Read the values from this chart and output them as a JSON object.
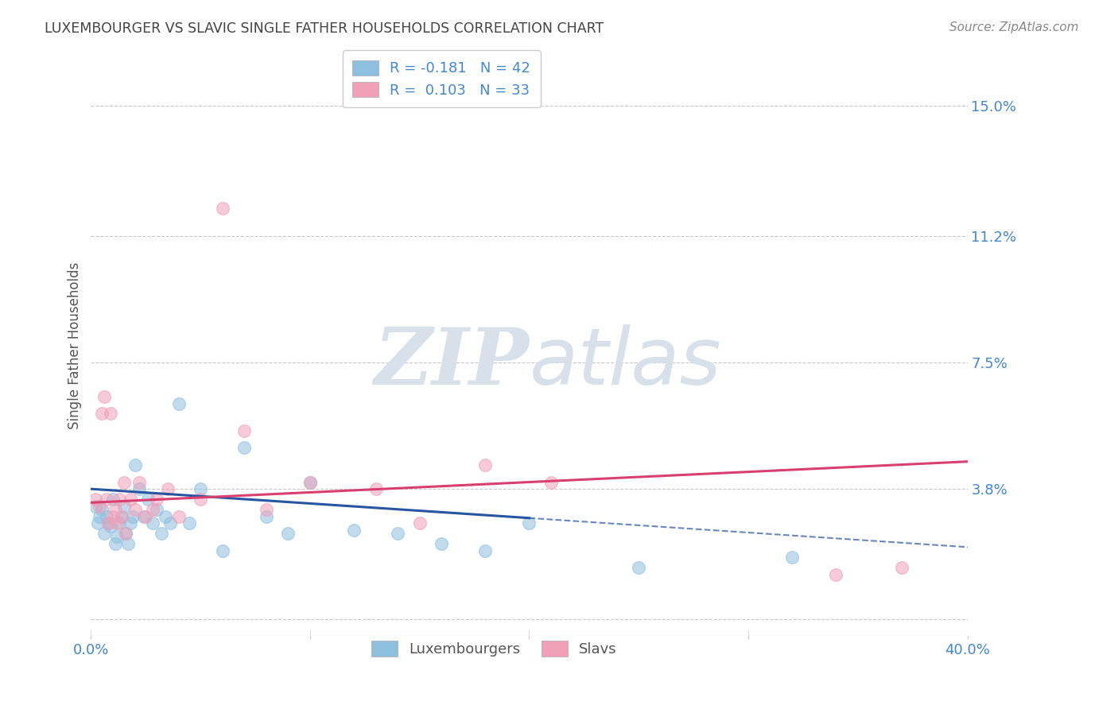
{
  "title": "LUXEMBOURGER VS SLAVIC SINGLE FATHER HOUSEHOLDS CORRELATION CHART",
  "source": "Source: ZipAtlas.com",
  "ylabel": "Single Father Households",
  "xlim": [
    0.0,
    0.4
  ],
  "ylim": [
    -0.005,
    0.165
  ],
  "yticks": [
    0.0,
    0.038,
    0.075,
    0.112,
    0.15
  ],
  "ytick_labels": [
    "",
    "3.8%",
    "7.5%",
    "11.2%",
    "15.0%"
  ],
  "xticks": [
    0.0,
    0.1,
    0.2,
    0.3,
    0.4
  ],
  "xtick_labels": [
    "0.0%",
    "",
    "",
    "",
    "40.0%"
  ],
  "grid_color": "#c8c8c8",
  "background_color": "#ffffff",
  "watermark_zip": "ZIP",
  "watermark_atlas": "atlas",
  "watermark_color": "#d8e0ea",
  "lux_color": "#8fbfdf",
  "slav_color": "#f0a0b8",
  "lux_line_color": "#2855a0",
  "slav_line_color": "#d84070",
  "tick_color": "#4488cc",
  "lux_r": -0.181,
  "lux_n": 42,
  "slav_r": 0.103,
  "slav_n": 33,
  "lux_line_start_y": 0.038,
  "lux_line_end_y": 0.021,
  "lux_line_solid_end_x": 0.2,
  "lux_line_x0": 0.0,
  "lux_line_x1": 0.4,
  "slav_line_start_y": 0.034,
  "slav_line_end_y": 0.046,
  "slav_line_x0": 0.0,
  "slav_line_x1": 0.4,
  "lux_scatter_x": [
    0.002,
    0.003,
    0.004,
    0.005,
    0.006,
    0.007,
    0.008,
    0.009,
    0.01,
    0.011,
    0.012,
    0.013,
    0.014,
    0.015,
    0.016,
    0.017,
    0.018,
    0.019,
    0.02,
    0.022,
    0.024,
    0.026,
    0.028,
    0.03,
    0.032,
    0.034,
    0.036,
    0.04,
    0.045,
    0.05,
    0.06,
    0.07,
    0.08,
    0.09,
    0.1,
    0.12,
    0.14,
    0.16,
    0.18,
    0.2,
    0.25,
    0.32
  ],
  "lux_scatter_y": [
    0.033,
    0.028,
    0.03,
    0.032,
    0.025,
    0.03,
    0.028,
    0.027,
    0.035,
    0.022,
    0.024,
    0.028,
    0.03,
    0.033,
    0.025,
    0.022,
    0.028,
    0.03,
    0.045,
    0.038,
    0.03,
    0.035,
    0.028,
    0.032,
    0.025,
    0.03,
    0.028,
    0.063,
    0.028,
    0.038,
    0.02,
    0.05,
    0.03,
    0.025,
    0.04,
    0.026,
    0.025,
    0.022,
    0.02,
    0.028,
    0.015,
    0.018
  ],
  "slav_scatter_x": [
    0.002,
    0.004,
    0.005,
    0.006,
    0.007,
    0.008,
    0.009,
    0.01,
    0.011,
    0.012,
    0.013,
    0.014,
    0.015,
    0.016,
    0.018,
    0.02,
    0.022,
    0.025,
    0.028,
    0.03,
    0.035,
    0.04,
    0.05,
    0.06,
    0.07,
    0.08,
    0.1,
    0.13,
    0.15,
    0.18,
    0.21,
    0.34,
    0.37
  ],
  "slav_scatter_y": [
    0.035,
    0.033,
    0.06,
    0.065,
    0.035,
    0.028,
    0.06,
    0.03,
    0.032,
    0.028,
    0.035,
    0.03,
    0.04,
    0.025,
    0.035,
    0.032,
    0.04,
    0.03,
    0.032,
    0.035,
    0.038,
    0.03,
    0.035,
    0.12,
    0.055,
    0.032,
    0.04,
    0.038,
    0.028,
    0.045,
    0.04,
    0.013,
    0.015
  ]
}
